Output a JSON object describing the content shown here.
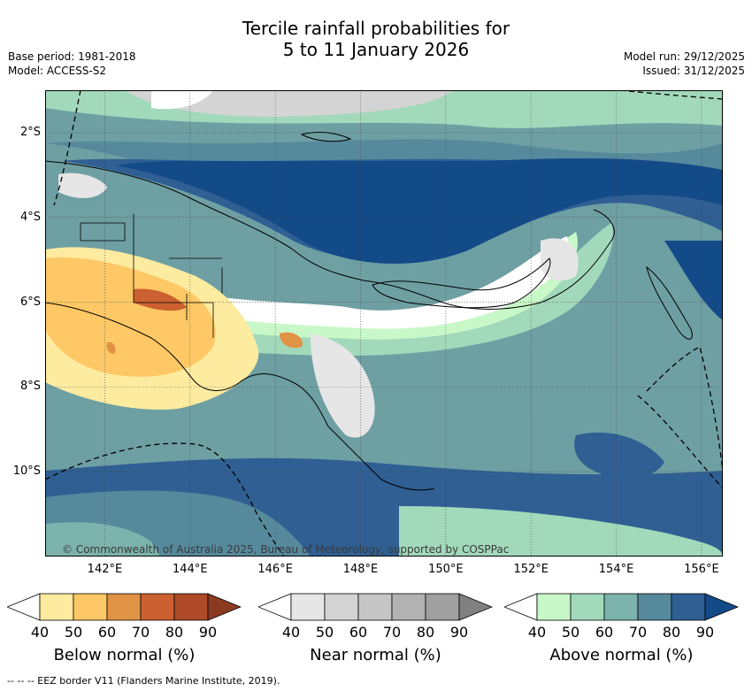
{
  "title_line1": "Tercile rainfall probabilities for",
  "title_line2": "5 to 11 January 2026",
  "base_period": "Base period: 1981-2018",
  "model": "Model: ACCESS-S2",
  "model_run": "Model run: 29/12/2025",
  "issued": "Issued: 31/12/2025",
  "copyright": "© Commonwealth of Australia 2025, Bureau of Meteorology, supported by COSPPac",
  "footnote": "-- -- -- EEZ border V11 (Flanders Marine Institute, 2019).",
  "map": {
    "lon_labels": [
      "142°E",
      "144°E",
      "146°E",
      "148°E",
      "150°E",
      "152°E",
      "154°E",
      "156°E"
    ],
    "lat_labels": [
      "2°S",
      "4°S",
      "6°S",
      "8°S",
      "10°S"
    ],
    "extent": {
      "lon": [
        140.6,
        156.5
      ],
      "lat": [
        -12.0,
        -1.0
      ]
    }
  },
  "colorbars": [
    {
      "title": "Below normal (%)",
      "ticks": [
        "40",
        "50",
        "60",
        "70",
        "80",
        "90"
      ],
      "colors": [
        "#ffffff",
        "#fdeba0",
        "#fdc865",
        "#e09345",
        "#cc6030",
        "#ae4a28",
        "#8c3a22"
      ]
    },
    {
      "title": "Near normal (%)",
      "ticks": [
        "40",
        "50",
        "60",
        "70",
        "80",
        "90"
      ],
      "colors": [
        "#ffffff",
        "#e6e6e6",
        "#d4d4d4",
        "#c5c5c5",
        "#b2b2b2",
        "#a0a0a0",
        "#808080"
      ]
    },
    {
      "title": "Above normal (%)",
      "ticks": [
        "40",
        "50",
        "60",
        "70",
        "80",
        "90"
      ],
      "colors": [
        "#ffffff",
        "#c8f8c8",
        "#a2d9bb",
        "#7cb3ac",
        "#56899c",
        "#2f5f93",
        "#134a88"
      ]
    }
  ]
}
